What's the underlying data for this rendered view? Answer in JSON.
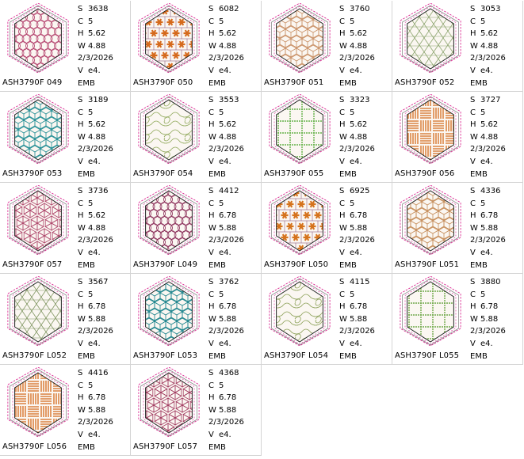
{
  "colors": {
    "hex_outer": "#8a8a8a",
    "hex_dashed": "#d81b8a",
    "hex_inner": "#222222",
    "grid_line": "#d4d4d4"
  },
  "labels": {
    "s": "S",
    "c": "C",
    "h": "H",
    "w": "W",
    "v": "V"
  },
  "files": [
    {
      "name": "ASH3790F 049",
      "s": "3638",
      "c": "5",
      "h": "5.62",
      "w": "4.88",
      "date": "2/3/2026",
      "v": "e4.",
      "fmt": "EMB",
      "pattern": "circles",
      "color": "#b4436e"
    },
    {
      "name": "ASH3790F 050",
      "s": "6082",
      "c": "5",
      "h": "5.62",
      "w": "4.88",
      "date": "2/3/2026",
      "v": "e4.",
      "fmt": "EMB",
      "pattern": "flowers",
      "color": "#d56a1d"
    },
    {
      "name": "ASH3790F 051",
      "s": "3760",
      "c": "5",
      "h": "5.62",
      "w": "4.88",
      "date": "2/3/2026",
      "v": "e4.",
      "fmt": "EMB",
      "pattern": "cubes",
      "color": "#c99066"
    },
    {
      "name": "ASH3790F 052",
      "s": "3053",
      "c": "5",
      "h": "5.62",
      "w": "4.88",
      "date": "2/3/2026",
      "v": "e4.",
      "fmt": "EMB",
      "pattern": "lattice",
      "color": "#8aa36c"
    },
    {
      "name": "ASH3790F 053",
      "s": "3189",
      "c": "5",
      "h": "5.62",
      "w": "4.88",
      "date": "2/3/2026",
      "v": "e4.",
      "fmt": "EMB",
      "pattern": "cubes",
      "color": "#1f8c93"
    },
    {
      "name": "ASH3790F 054",
      "s": "3553",
      "c": "5",
      "h": "5.62",
      "w": "4.88",
      "date": "2/3/2026",
      "v": "e4.",
      "fmt": "EMB",
      "pattern": "swirls",
      "color": "#8fa85a"
    },
    {
      "name": "ASH3790F 055",
      "s": "3323",
      "c": "5",
      "h": "5.62",
      "w": "4.88",
      "date": "2/3/2026",
      "v": "e4.",
      "fmt": "EMB",
      "pattern": "grid",
      "color": "#66b24a"
    },
    {
      "name": "ASH3790F 056",
      "s": "3727",
      "c": "5",
      "h": "5.62",
      "w": "4.88",
      "date": "2/3/2026",
      "v": "e4.",
      "fmt": "EMB",
      "pattern": "weave",
      "color": "#d46d1f"
    },
    {
      "name": "ASH3790F 057",
      "s": "3736",
      "c": "5",
      "h": "5.62",
      "w": "4.88",
      "date": "2/3/2026",
      "v": "e4.",
      "fmt": "EMB",
      "pattern": "stars",
      "color": "#b04a6e"
    },
    {
      "name": "ASH3790F L049",
      "s": "4412",
      "c": "5",
      "h": "6.78",
      "w": "5.88",
      "date": "2/3/2026",
      "v": "e4.",
      "fmt": "EMB",
      "pattern": "circles",
      "color": "#8c2f5a"
    },
    {
      "name": "ASH3790F L050",
      "s": "6925",
      "c": "5",
      "h": "6.78",
      "w": "5.88",
      "date": "2/3/2026",
      "v": "e4.",
      "fmt": "EMB",
      "pattern": "flowers",
      "color": "#d5731d"
    },
    {
      "name": "ASH3790F L051",
      "s": "4336",
      "c": "5",
      "h": "6.78",
      "w": "5.88",
      "date": "2/3/2026",
      "v": "e4.",
      "fmt": "EMB",
      "pattern": "cubes",
      "color": "#c48a56"
    },
    {
      "name": "ASH3790F L052",
      "s": "3567",
      "c": "5",
      "h": "6.78",
      "w": "5.88",
      "date": "2/3/2026",
      "v": "e4.",
      "fmt": "EMB",
      "pattern": "lattice",
      "color": "#7f9560"
    },
    {
      "name": "ASH3790F L053",
      "s": "3762",
      "c": "5",
      "h": "6.78",
      "w": "5.88",
      "date": "2/3/2026",
      "v": "e4.",
      "fmt": "EMB",
      "pattern": "cubes",
      "color": "#16808a"
    },
    {
      "name": "ASH3790F L054",
      "s": "4115",
      "c": "5",
      "h": "6.78",
      "w": "5.88",
      "date": "2/3/2026",
      "v": "e4.",
      "fmt": "EMB",
      "pattern": "swirls",
      "color": "#8a9f55"
    },
    {
      "name": "ASH3790F L055",
      "s": "3880",
      "c": "5",
      "h": "6.78",
      "w": "5.88",
      "date": "2/3/2026",
      "v": "e4.",
      "fmt": "EMB",
      "pattern": "grid",
      "color": "#70a84a"
    },
    {
      "name": "ASH3790F L056",
      "s": "4416",
      "c": "5",
      "h": "6.78",
      "w": "5.88",
      "date": "2/3/2026",
      "v": "e4.",
      "fmt": "EMB",
      "pattern": "weave",
      "color": "#d46a1c"
    },
    {
      "name": "ASH3790F L057",
      "s": "4368",
      "c": "5",
      "h": "6.78",
      "w": "5.88",
      "date": "2/3/2026",
      "v": "e4.",
      "fmt": "EMB",
      "pattern": "stars",
      "color": "#a33f63"
    }
  ]
}
